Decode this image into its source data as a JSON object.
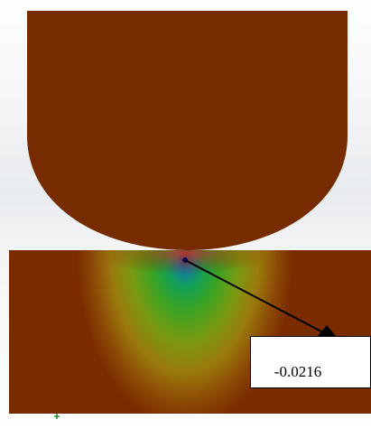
{
  "annotation": {
    "label": "-0.0216"
  }
}
